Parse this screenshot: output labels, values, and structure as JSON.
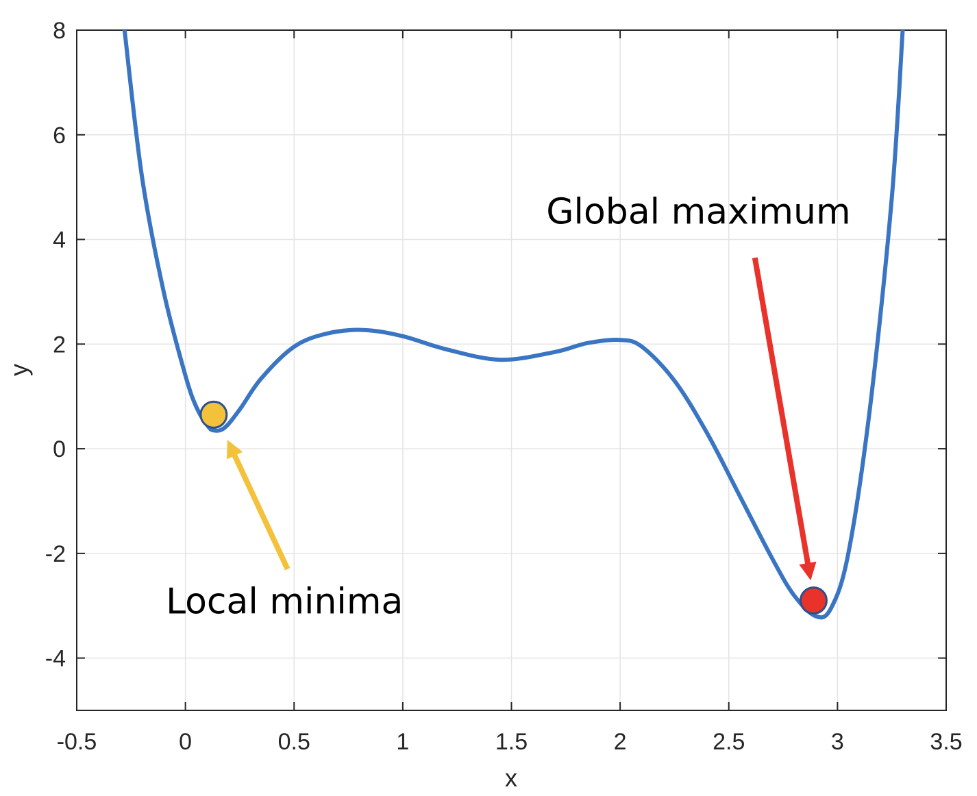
{
  "chart_data": {
    "type": "line",
    "title": "",
    "xlabel": "x",
    "ylabel": "y",
    "xlim": [
      -0.5,
      3.5
    ],
    "ylim": [
      -5,
      8
    ],
    "xticks": [
      -0.5,
      0,
      0.5,
      1,
      1.5,
      2,
      2.5,
      3,
      3.5
    ],
    "xtick_labels": [
      "-0.5",
      "0",
      "0.5",
      "1",
      "1.5",
      "2",
      "2.5",
      "3",
      "3.5"
    ],
    "yticks": [
      -4,
      -2,
      0,
      2,
      4,
      6,
      8
    ],
    "ytick_labels": [
      "-4",
      "-2",
      "0",
      "2",
      "4",
      "6",
      "8"
    ],
    "grid": true,
    "series": [
      {
        "color": "#3a75c4",
        "x": [
          -0.28,
          -0.2,
          -0.1,
          0.0,
          0.05,
          0.1,
          0.13,
          0.18,
          0.25,
          0.35,
          0.5,
          0.65,
          0.82,
          1.0,
          1.2,
          1.45,
          1.7,
          1.85,
          2.0,
          2.1,
          2.25,
          2.4,
          2.55,
          2.7,
          2.8,
          2.9,
          2.97,
          3.05,
          3.15,
          3.25,
          3.3
        ],
        "y": [
          8.0,
          5.2,
          3.0,
          1.4,
          0.8,
          0.45,
          0.35,
          0.4,
          0.75,
          1.35,
          1.95,
          2.2,
          2.27,
          2.15,
          1.9,
          1.7,
          1.85,
          2.02,
          2.08,
          1.95,
          1.3,
          0.3,
          -0.9,
          -2.1,
          -2.8,
          -3.2,
          -3.05,
          -2.0,
          0.8,
          4.8,
          8.0
        ]
      }
    ],
    "markers": [
      {
        "x": 0.13,
        "y": 0.65,
        "color": "#f3c13a"
      },
      {
        "x": 2.89,
        "y": -2.9,
        "color": "#e8322a"
      }
    ],
    "annotations": [
      {
        "text": "Local minima",
        "x": -0.09,
        "y": -3.15,
        "arrow_from": [
          0.47,
          -2.3
        ],
        "arrow_to": [
          0.21,
          0.02
        ],
        "arrow_color": "#f3c13a"
      },
      {
        "text": "Global maximum",
        "x": 1.66,
        "y": 4.3,
        "arrow_from": [
          2.62,
          3.65
        ],
        "arrow_to": [
          2.87,
          -2.35
        ],
        "arrow_color": "#e8322a"
      }
    ]
  }
}
